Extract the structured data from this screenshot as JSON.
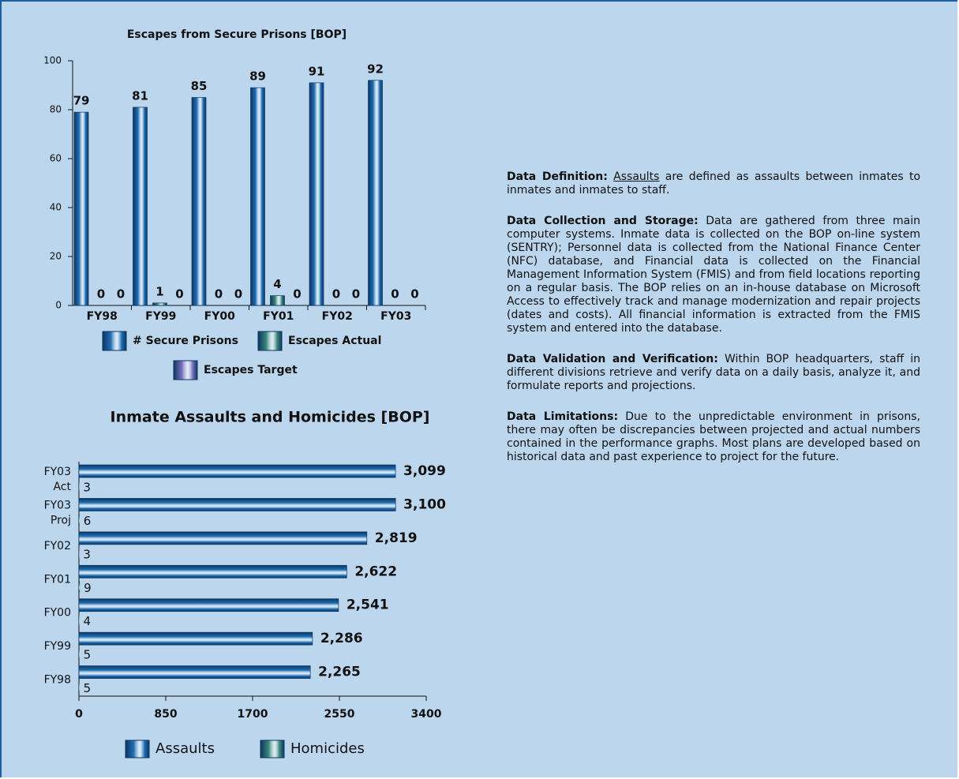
{
  "chart_data": [
    {
      "type": "bar",
      "title": "Escapes from Secure Prisons [BOP]",
      "categories": [
        "FY98",
        "FY99",
        "FY00",
        "FY01",
        "FY02",
        "FY03"
      ],
      "series": [
        {
          "name": "# Secure Prisons",
          "color": "#1f6fb5",
          "values": [
            79,
            81,
            85,
            89,
            91,
            92
          ]
        },
        {
          "name": "Escapes Actual",
          "color": "#3a8a78",
          "values": [
            0,
            1,
            0,
            4,
            0,
            0
          ]
        },
        {
          "name": "Escapes Target",
          "color": "#7a70c0",
          "values": [
            0,
            0,
            0,
            0,
            0,
            0
          ]
        }
      ],
      "ylim": [
        0,
        100
      ],
      "yticks": [
        0,
        20,
        40,
        60,
        80,
        100
      ]
    },
    {
      "type": "barh",
      "title": "Inmate Assaults and Homicides [BOP]",
      "categories": [
        "FY03 Act",
        "FY03 Proj",
        "FY02",
        "FY01",
        "FY00",
        "FY99",
        "FY98"
      ],
      "series": [
        {
          "name": "Assaults",
          "color": "#1f6fb5",
          "values": [
            3099,
            3100,
            2819,
            2622,
            2541,
            2286,
            2265
          ],
          "value_labels": [
            "3,099",
            "3,100",
            "2,819",
            "2,622",
            "2,541",
            "2,286",
            "2,265"
          ]
        },
        {
          "name": "Homicides",
          "color": "#3a8a78",
          "values": [
            3,
            6,
            3,
            9,
            4,
            5,
            5
          ]
        }
      ],
      "xlim": [
        0,
        3400
      ],
      "xticks": [
        0,
        850,
        1700,
        2550,
        3400
      ]
    }
  ],
  "sections": [
    {
      "heading": "Data Definition:",
      "term": "Assaults",
      "body": "are defined as assaults between inmates to inmates and inmates to staff."
    },
    {
      "heading": "Data Collection and Storage:",
      "body": "Data are gathered from three main computer systems. Inmate data is collected on the BOP on-line system (SENTRY); Personnel data is collected from the National Finance Center (NFC) database, and Financial data is collected on the Financial Management Information System (FMIS) and from field locations reporting on a regular basis.  The BOP relies on an in-house database on Microsoft Access to effectively track and manage modernization and repair projects (dates and costs). All financial information is extracted from the FMIS system and entered into the database."
    },
    {
      "heading": "Data Validation and Verification:",
      "body": "Within BOP headquarters, staff in different divisions retrieve and verify data on a daily basis, analyze it, and formulate reports and projections."
    },
    {
      "heading": "Data Limitations:",
      "body": "Due to the unpredictable environment in prisons, there may often be discrepancies between projected and actual numbers contained in the performance graphs.  Most plans are developed based on historical data and past experience to project for the future."
    }
  ]
}
